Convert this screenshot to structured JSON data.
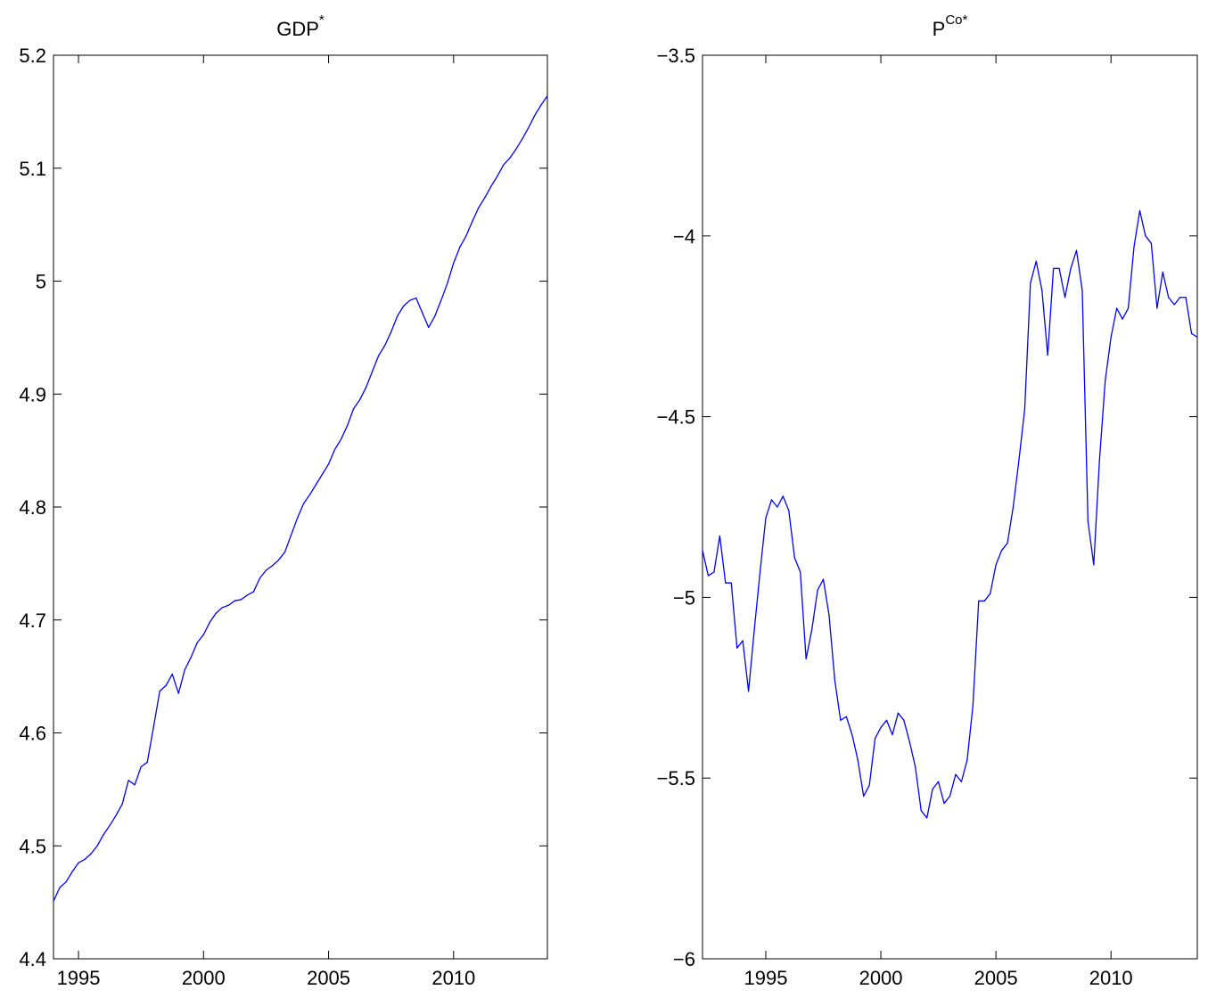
{
  "chart_data": [
    {
      "type": "line",
      "title": "GDP",
      "title_superscript": "*",
      "xlabel": "",
      "ylabel": "",
      "xlim": [
        1994,
        2013.75
      ],
      "ylim": [
        4.4,
        5.2
      ],
      "grid": false,
      "xticks": [
        1995,
        2000,
        2005,
        2010
      ],
      "yticks": [
        4.4,
        4.5,
        4.6,
        4.7,
        4.8,
        4.9,
        5.0,
        5.1,
        5.2
      ],
      "xtick_labels": [
        "1995",
        "2000",
        "2005",
        "2010"
      ],
      "ytick_labels": [
        "4.4",
        "4.5",
        "4.6",
        "4.7",
        "4.8",
        "4.9",
        "5",
        "5.1",
        "5.2"
      ],
      "line_color": "#0000ff",
      "series": [
        {
          "x": [
            1994.0,
            1994.25,
            1994.5,
            1994.75,
            1995.0,
            1995.25,
            1995.5,
            1995.75,
            1996.0,
            1996.25,
            1996.5,
            1996.75,
            1997.0,
            1997.25,
            1997.5,
            1997.75,
            1998.0,
            1998.25,
            1998.5,
            1998.75,
            1999.0,
            1999.25,
            1999.5,
            1999.75,
            2000.0,
            2000.25,
            2000.5,
            2000.75,
            2001.0,
            2001.25,
            2001.5,
            2001.75,
            2002.0,
            2002.25,
            2002.5,
            2002.75,
            2003.0,
            2003.25,
            2003.5,
            2003.75,
            2004.0,
            2004.25,
            2004.5,
            2004.75,
            2005.0,
            2005.25,
            2005.5,
            2005.75,
            2006.0,
            2006.25,
            2006.5,
            2006.75,
            2007.0,
            2007.25,
            2007.5,
            2007.75,
            2008.0,
            2008.25,
            2008.5,
            2008.75,
            2009.0,
            2009.25,
            2009.5,
            2009.75,
            2010.0,
            2010.25,
            2010.5,
            2010.75,
            2011.0,
            2011.25,
            2011.5,
            2011.75,
            2012.0,
            2012.25,
            2012.5,
            2012.75,
            2013.0,
            2013.25,
            2013.5,
            2013.75
          ],
          "values": [
            4.451,
            4.463,
            4.468,
            4.477,
            4.485,
            4.488,
            4.493,
            4.5,
            4.51,
            4.518,
            4.527,
            4.537,
            4.558,
            4.554,
            4.57,
            4.574,
            4.605,
            4.637,
            4.642,
            4.652,
            4.635,
            4.656,
            4.667,
            4.68,
            4.687,
            4.698,
            4.706,
            4.711,
            4.713,
            4.717,
            4.718,
            4.722,
            4.725,
            4.737,
            4.744,
            4.748,
            4.753,
            4.76,
            4.775,
            4.79,
            4.803,
            4.811,
            4.82,
            4.829,
            4.838,
            4.851,
            4.86,
            4.872,
            4.887,
            4.895,
            4.906,
            4.92,
            4.934,
            4.943,
            4.955,
            4.969,
            4.978,
            4.983,
            4.985,
            4.972,
            4.959,
            4.969,
            4.983,
            4.998,
            5.016,
            5.03,
            5.04,
            5.053,
            5.065,
            5.074,
            5.084,
            5.093,
            5.103,
            5.109,
            5.117,
            5.126,
            5.136,
            5.147,
            5.156,
            5.164
          ]
        }
      ]
    },
    {
      "type": "line",
      "title": "P",
      "title_superscript": "Co*",
      "xlabel": "",
      "ylabel": "",
      "xlim": [
        1992.25,
        2013.75
      ],
      "ylim": [
        -6,
        -3.5
      ],
      "grid": false,
      "xticks": [
        1995,
        2000,
        2005,
        2010
      ],
      "yticks": [
        -6,
        -5.5,
        -5,
        -4.5,
        -4,
        -3.5
      ],
      "xtick_labels": [
        "1995",
        "2000",
        "2005",
        "2010"
      ],
      "ytick_labels": [
        "−6",
        "−5.5",
        "−5",
        "−4.5",
        "−4",
        "−3.5"
      ],
      "line_color": "#0000ff",
      "series": [
        {
          "x": [
            1992.25,
            1992.5,
            1992.75,
            1993.0,
            1993.25,
            1993.5,
            1993.75,
            1994.0,
            1994.25,
            1994.5,
            1994.75,
            1995.0,
            1995.25,
            1995.5,
            1995.75,
            1996.0,
            1996.25,
            1996.5,
            1996.75,
            1997.0,
            1997.25,
            1997.5,
            1997.75,
            1998.0,
            1998.25,
            1998.5,
            1998.75,
            1999.0,
            1999.25,
            1999.5,
            1999.75,
            2000.0,
            2000.25,
            2000.5,
            2000.75,
            2001.0,
            2001.25,
            2001.5,
            2001.75,
            2002.0,
            2002.25,
            2002.5,
            2002.75,
            2003.0,
            2003.25,
            2003.5,
            2003.75,
            2004.0,
            2004.25,
            2004.5,
            2004.75,
            2005.0,
            2005.25,
            2005.5,
            2005.75,
            2006.0,
            2006.25,
            2006.5,
            2006.75,
            2007.0,
            2007.25,
            2007.5,
            2007.75,
            2008.0,
            2008.25,
            2008.5,
            2008.75,
            2009.0,
            2009.25,
            2009.5,
            2009.75,
            2010.0,
            2010.25,
            2010.5,
            2010.75,
            2011.0,
            2011.25,
            2011.5,
            2011.75,
            2012.0,
            2012.25,
            2012.5,
            2012.75,
            2013.0,
            2013.25,
            2013.5,
            2013.75
          ],
          "values": [
            -4.87,
            -4.94,
            -4.93,
            -4.83,
            -4.96,
            -4.96,
            -5.14,
            -5.12,
            -5.26,
            -5.09,
            -4.93,
            -4.78,
            -4.73,
            -4.75,
            -4.72,
            -4.76,
            -4.89,
            -4.93,
            -5.17,
            -5.09,
            -4.98,
            -4.95,
            -5.05,
            -5.23,
            -5.34,
            -5.33,
            -5.38,
            -5.45,
            -5.55,
            -5.52,
            -5.39,
            -5.36,
            -5.34,
            -5.38,
            -5.32,
            -5.34,
            -5.4,
            -5.47,
            -5.59,
            -5.61,
            -5.53,
            -5.51,
            -5.57,
            -5.55,
            -5.49,
            -5.51,
            -5.45,
            -5.3,
            -5.01,
            -5.01,
            -4.99,
            -4.91,
            -4.87,
            -4.85,
            -4.75,
            -4.62,
            -4.48,
            -4.13,
            -4.07,
            -4.15,
            -4.33,
            -4.09,
            -4.09,
            -4.17,
            -4.09,
            -4.04,
            -4.15,
            -4.79,
            -4.91,
            -4.62,
            -4.4,
            -4.28,
            -4.2,
            -4.23,
            -4.2,
            -4.03,
            -3.93,
            -4.0,
            -4.02,
            -4.2,
            -4.1,
            -4.17,
            -4.19,
            -4.17,
            -4.17,
            -4.27,
            -4.28
          ]
        }
      ]
    }
  ]
}
